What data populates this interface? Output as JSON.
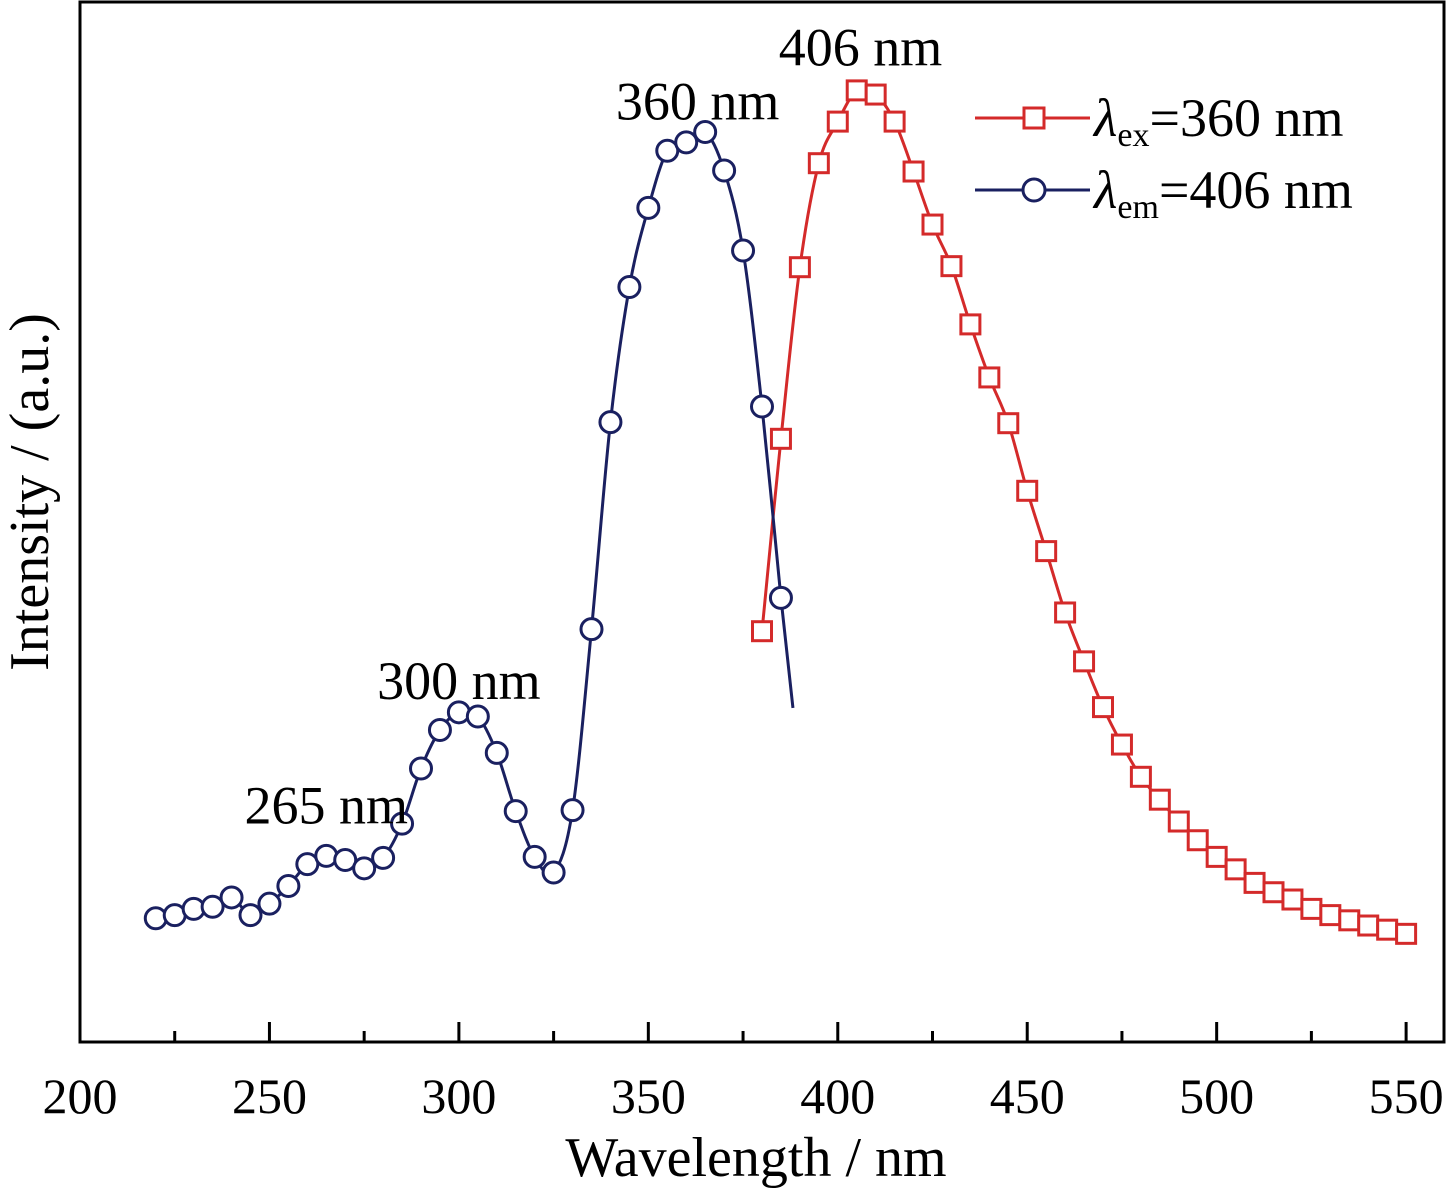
{
  "chart_data": {
    "type": "line",
    "title": "",
    "xlabel": "Wavelength / nm",
    "ylabel": "Intensity / (a.u.)",
    "xlim": [
      200,
      560
    ],
    "ylim": [
      0,
      1
    ],
    "x_ticks": [
      200,
      250,
      300,
      350,
      400,
      450,
      500,
      550
    ],
    "grid": false,
    "legend_position": "top-right",
    "series": [
      {
        "name": "λex=360 nm",
        "legend_symbol": "λ",
        "legend_sub": "ex",
        "legend_rest": "=360 nm",
        "marker": "square",
        "color": "#d42a2a",
        "x": [
          380,
          385,
          390,
          395,
          400,
          405,
          410,
          415,
          420,
          425,
          430,
          435,
          440,
          445,
          450,
          455,
          460,
          465,
          470,
          475,
          480,
          485,
          490,
          495,
          500,
          505,
          510,
          515,
          520,
          525,
          530,
          535,
          540,
          545,
          550
        ],
        "y": [
          0.395,
          0.58,
          0.745,
          0.845,
          0.885,
          0.915,
          0.911,
          0.885,
          0.837,
          0.786,
          0.746,
          0.69,
          0.639,
          0.595,
          0.53,
          0.472,
          0.413,
          0.366,
          0.322,
          0.286,
          0.255,
          0.233,
          0.212,
          0.194,
          0.178,
          0.166,
          0.153,
          0.144,
          0.137,
          0.128,
          0.122,
          0.117,
          0.112,
          0.108,
          0.104
        ]
      },
      {
        "name": "λem=406 nm",
        "legend_symbol": "λ",
        "legend_sub": "em",
        "legend_rest": "=406 nm",
        "marker": "circle",
        "color": "#1a2060",
        "x": [
          220,
          225,
          230,
          235,
          240,
          245,
          250,
          255,
          260,
          265,
          270,
          275,
          280,
          285,
          290,
          295,
          300,
          305,
          310,
          315,
          320,
          325,
          330,
          335,
          340,
          345,
          350,
          355,
          360,
          365,
          370,
          375,
          380,
          385
        ],
        "y": [
          0.119,
          0.122,
          0.128,
          0.13,
          0.139,
          0.122,
          0.133,
          0.15,
          0.171,
          0.179,
          0.175,
          0.167,
          0.177,
          0.21,
          0.263,
          0.3,
          0.317,
          0.313,
          0.278,
          0.222,
          0.178,
          0.163,
          0.223,
          0.397,
          0.596,
          0.726,
          0.802,
          0.857,
          0.865,
          0.875,
          0.838,
          0.761,
          0.611,
          0.427
        ]
      }
    ],
    "annotations": [
      {
        "text": "265 nm",
        "x": 265,
        "y": 0.21
      },
      {
        "text": "300 nm",
        "x": 300,
        "y": 0.33
      },
      {
        "text": "360 nm",
        "x": 363,
        "y": 0.887
      },
      {
        "text": "406 nm",
        "x": 406,
        "y": 0.939
      }
    ]
  }
}
